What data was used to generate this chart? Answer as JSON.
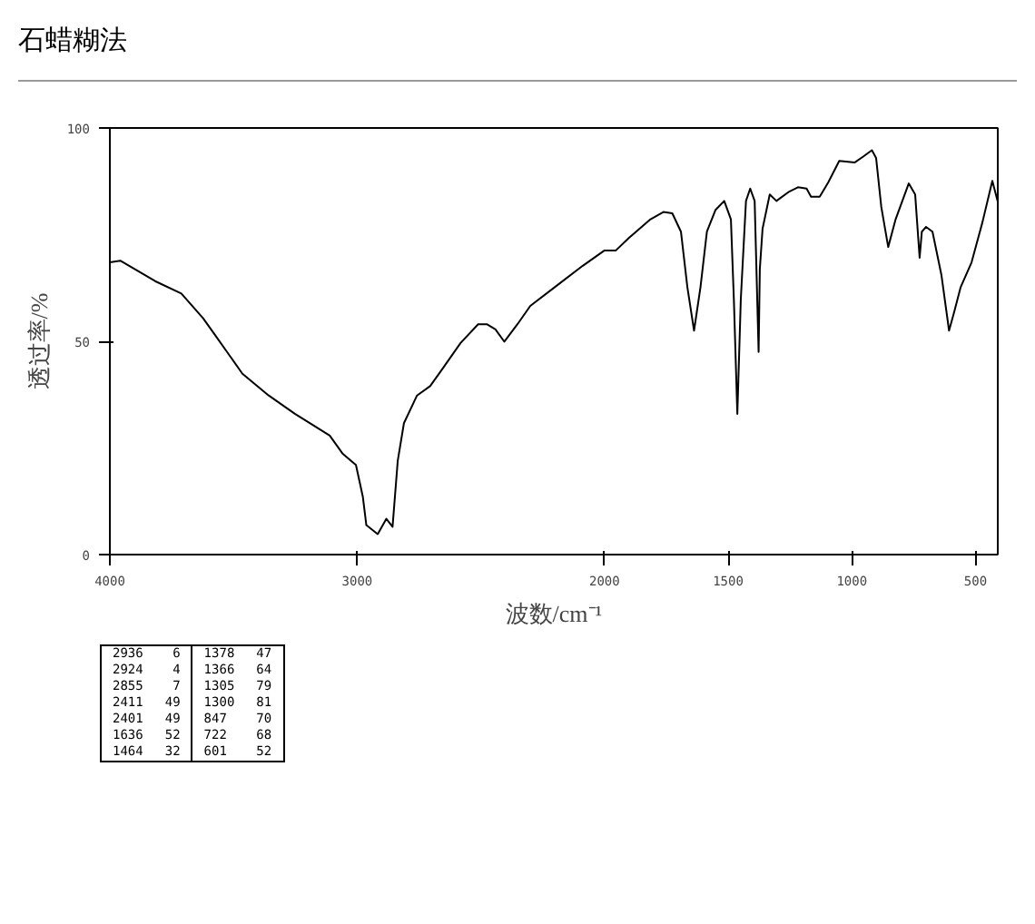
{
  "chart_data": {
    "type": "line",
    "title": "石蜡糊法",
    "xlabel": "波数/cm⁻¹",
    "ylabel": "透过率/%",
    "x": [
      4000,
      3958,
      3817,
      3711,
      3623,
      3570,
      3464,
      3358,
      3252,
      3111,
      3058,
      3005,
      2977,
      2963,
      2917,
      2882,
      2857,
      2836,
      2811,
      2758,
      2705,
      2652,
      2582,
      2511,
      2476,
      2441,
      2405,
      2352,
      2300,
      2194,
      2088,
      2000,
      1954,
      1902,
      1814,
      1762,
      1726,
      1691,
      1665,
      1638,
      1612,
      1586,
      1551,
      1516,
      1489,
      1477,
      1463,
      1449,
      1428,
      1411,
      1393,
      1377,
      1372,
      1361,
      1332,
      1305,
      1253,
      1218,
      1183,
      1165,
      1130,
      1095,
      1051,
      989,
      954,
      919,
      902,
      881,
      853,
      823,
      770,
      744,
      726,
      717,
      700,
      674,
      638,
      607,
      586,
      560,
      516,
      472,
      432,
      411
    ],
    "series": [
      {
        "color": "#000000",
        "values": [
          68.5,
          68.9,
          64.1,
          61.2,
          55.4,
          51.1,
          42.4,
          37.3,
          33.0,
          27.9,
          23.6,
          21.0,
          13.5,
          6.9,
          4.8,
          8.4,
          6.5,
          22,
          30.8,
          37.3,
          39.5,
          43.8,
          49.6,
          54,
          54,
          52.8,
          49.9,
          54,
          58.3,
          63,
          67.7,
          71.3,
          71.3,
          74.2,
          78.6,
          80.3,
          80,
          75.7,
          62.7,
          52.5,
          62.7,
          75.7,
          80.8,
          82.9,
          78.6,
          59.8,
          33,
          59.8,
          82.9,
          85.8,
          82.9,
          47.5,
          67,
          76.4,
          84.4,
          82.9,
          85.1,
          86.1,
          85.8,
          83.9,
          83.9,
          87.3,
          92.3,
          91.9,
          93.3,
          94.8,
          93,
          81.5,
          72.1,
          78.6,
          87,
          84.4,
          69.6,
          75.7,
          76.8,
          75.7,
          65.6,
          52.5,
          56.9,
          62.7,
          68.5,
          77.9,
          87.6,
          82.9
        ]
      }
    ],
    "xlim": [
      4000,
      410
    ],
    "ylim": [
      0,
      100
    ],
    "xticks": [
      4000,
      3000,
      2000,
      1500,
      1000,
      500
    ],
    "yticks": [
      0,
      50,
      100
    ],
    "grid": false,
    "marker": "none",
    "line_style": "solid",
    "annotations": [
      "2936 6",
      "2924 4",
      "2855 7",
      "2411 49",
      "2401 49",
      "1636 52",
      "1464 32",
      "1378 47",
      "1366 64",
      "1305 79",
      "1300 81",
      "847 70",
      "722 68",
      "601 52"
    ]
  }
}
